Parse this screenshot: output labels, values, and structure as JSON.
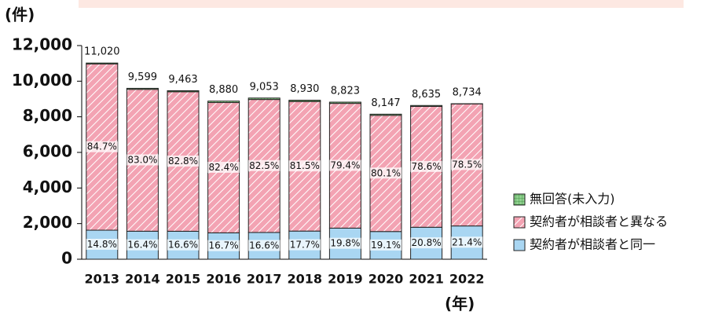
{
  "chart_data": {
    "type": "stacked_bar",
    "y_unit_label": "(件)",
    "x_unit_label": "(年)",
    "categories": [
      "2013",
      "2014",
      "2015",
      "2016",
      "2017",
      "2018",
      "2019",
      "2020",
      "2021",
      "2022"
    ],
    "series": [
      {
        "name": "契約者が相談者と同一",
        "color": "#a9d6f2",
        "values": [
          1631,
          1574,
          1571,
          1483,
          1503,
          1581,
          1747,
          1556,
          1796,
          1869
        ],
        "share_labels": [
          "14.8%",
          "16.4%",
          "16.6%",
          "16.7%",
          "16.6%",
          "17.7%",
          "19.8%",
          "19.1%",
          "20.8%",
          "21.4%"
        ]
      },
      {
        "name": "契約者が相談者と異なる",
        "color": "#f3a3b3",
        "values": [
          9334,
          7967,
          7835,
          7317,
          7469,
          7278,
          7005,
          6526,
          6787,
          6856
        ],
        "share_labels": [
          "84.7%",
          "83.0%",
          "82.8%",
          "82.4%",
          "82.5%",
          "81.5%",
          "79.4%",
          "80.1%",
          "78.6%",
          "78.5%"
        ]
      },
      {
        "name": "無回答(未入力)",
        "color": "#8fd08f",
        "values": [
          55,
          58,
          57,
          80,
          81,
          71,
          71,
          65,
          52,
          9
        ]
      }
    ],
    "totals": [
      11020,
      9599,
      9463,
      8880,
      9053,
      8930,
      8823,
      8147,
      8635,
      8734
    ],
    "total_labels": [
      "11,020",
      "9,599",
      "9,463",
      "8,880",
      "9,053",
      "8,930",
      "8,823",
      "8,147",
      "8,635",
      "8,734"
    ],
    "ylim": [
      0,
      12000
    ],
    "yticks": [
      0,
      {
        "value": 2000,
        "label": "2,000"
      },
      {
        "value": 4000,
        "label": "4,000"
      },
      {
        "value": 6000,
        "label": "6,000"
      },
      {
        "value": 8000,
        "label": "8,000"
      },
      {
        "value": 10000,
        "label": "10,000"
      },
      {
        "value": 12000,
        "label": "12,000"
      }
    ]
  }
}
